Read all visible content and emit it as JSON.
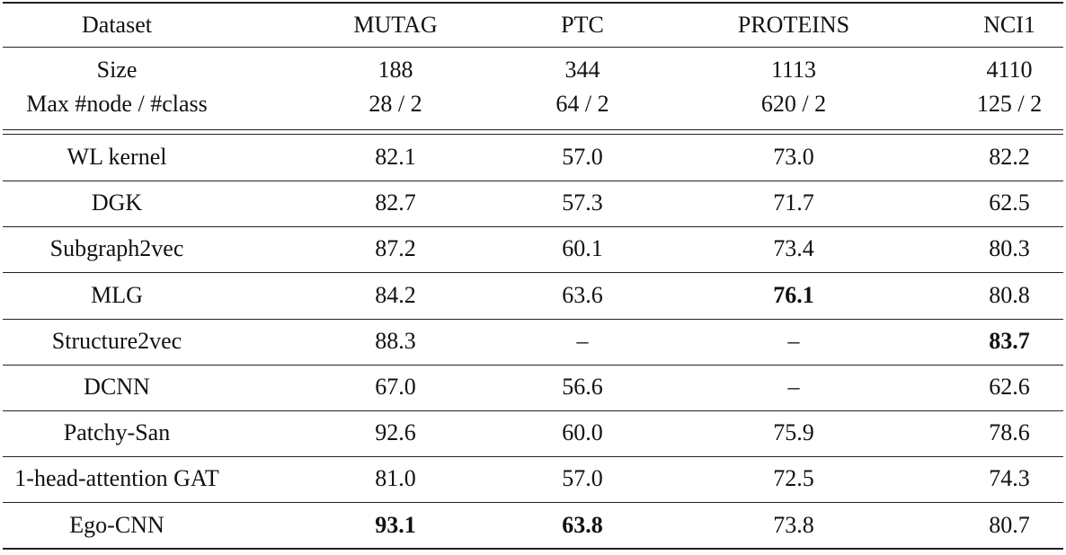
{
  "table": {
    "header": [
      "Dataset",
      "MUTAG",
      "PTC",
      "PROTEINS",
      "NCI1"
    ],
    "info_rows": [
      [
        "Size",
        "188",
        "344",
        "1113",
        "4110"
      ],
      [
        "Max #node / #class",
        "28 / 2",
        "64 / 2",
        "620 / 2",
        "125 / 2"
      ]
    ],
    "rows": [
      {
        "cells": [
          "WL kernel",
          "82.1",
          "57.0",
          "73.0",
          "82.2"
        ],
        "bold": []
      },
      {
        "cells": [
          "DGK",
          "82.7",
          "57.3",
          "71.7",
          "62.5"
        ],
        "bold": []
      },
      {
        "cells": [
          "Subgraph2vec",
          "87.2",
          "60.1",
          "73.4",
          "80.3"
        ],
        "bold": []
      },
      {
        "cells": [
          "MLG",
          "84.2",
          "63.6",
          "76.1",
          "80.8"
        ],
        "bold": [
          3
        ]
      },
      {
        "cells": [
          "Structure2vec",
          "88.3",
          "–",
          "–",
          "83.7"
        ],
        "bold": [
          4
        ]
      },
      {
        "cells": [
          "DCNN",
          "67.0",
          "56.6",
          "–",
          "62.6"
        ],
        "bold": []
      },
      {
        "cells": [
          "Patchy-San",
          "92.6",
          "60.0",
          "75.9",
          "78.6"
        ],
        "bold": []
      },
      {
        "cells": [
          "1-head-attention GAT",
          "81.0",
          "57.0",
          "72.5",
          "74.3"
        ],
        "bold": []
      },
      {
        "cells": [
          "Ego-CNN",
          "93.1",
          "63.8",
          "73.8",
          "80.7"
        ],
        "bold": [
          1,
          2
        ]
      }
    ]
  }
}
